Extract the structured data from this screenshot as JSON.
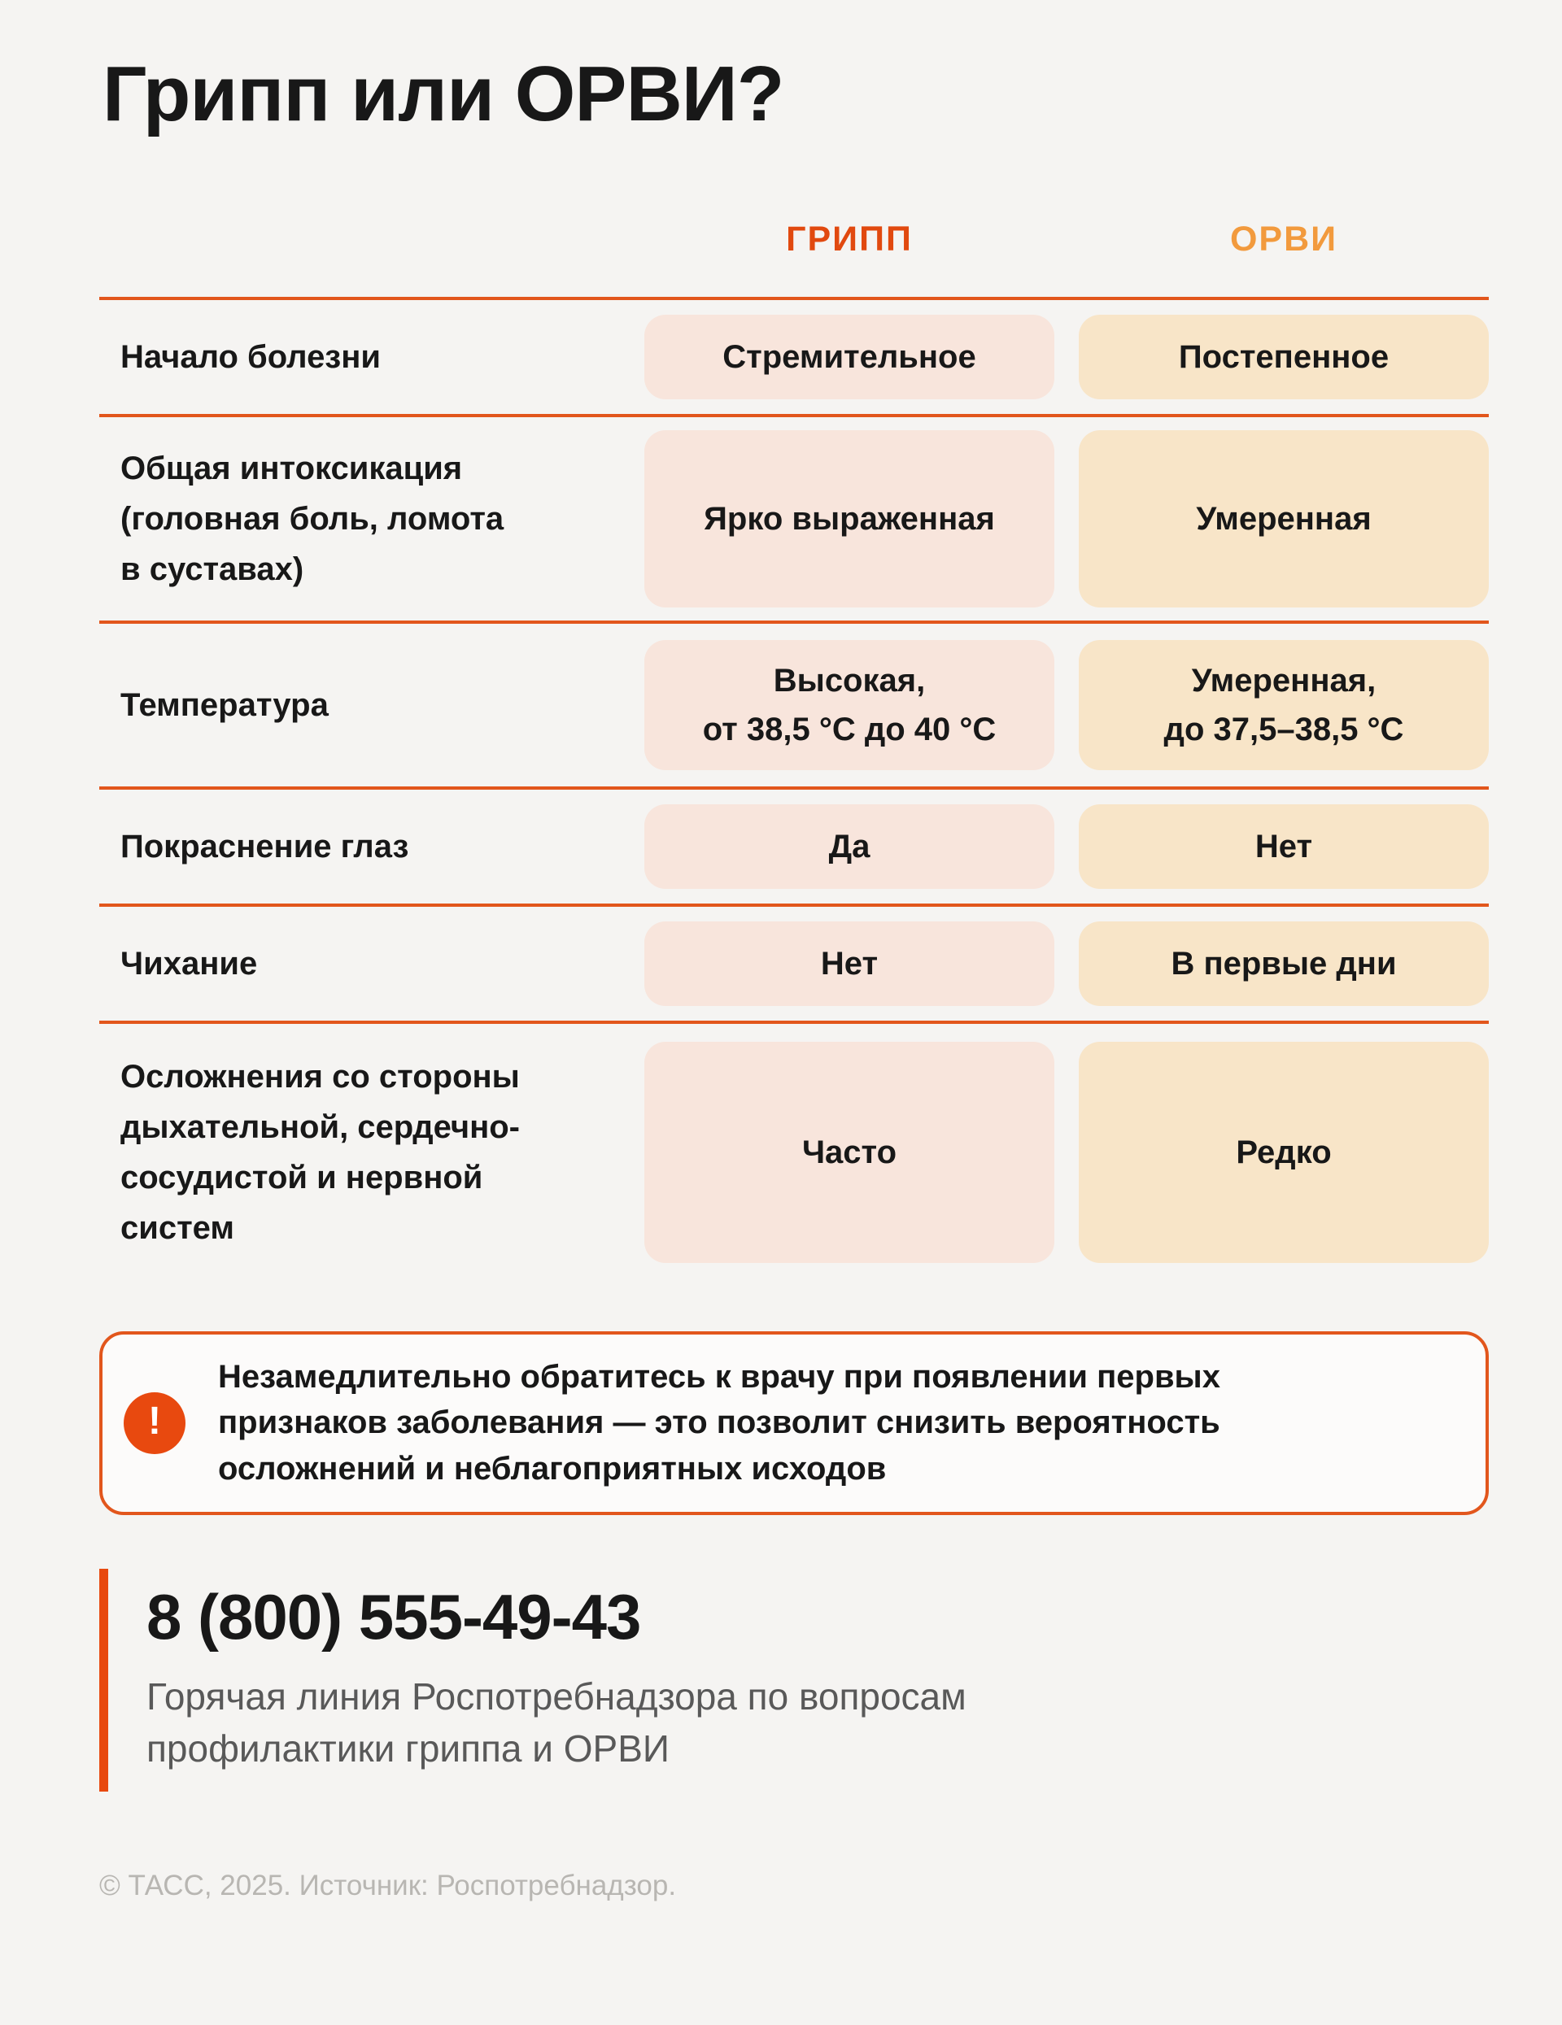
{
  "title": "Грипп или ОРВИ?",
  "table": {
    "columns": [
      {
        "label": "ГРИПП",
        "color": "#e1490f"
      },
      {
        "label": "ОРВИ",
        "color": "#f29a3d"
      }
    ],
    "rows": [
      {
        "label": "Начало болезни",
        "gripp": "Стремительное",
        "orvi": "Постепенное"
      },
      {
        "label": "Общая интоксикация\n(головная боль, ломота\nв суставах)",
        "gripp": "Ярко выраженная",
        "orvi": "Умеренная"
      },
      {
        "label": "Температура",
        "gripp": "Высокая,\nот 38,5 °C до 40 °C",
        "orvi": "Умеренная,\nдо 37,5–38,5 °C"
      },
      {
        "label": "Покраснение глаз",
        "gripp": "Да",
        "orvi": "Нет"
      },
      {
        "label": "Чихание",
        "gripp": "Нет",
        "orvi": "В первые дни"
      },
      {
        "label": "Осложнения со стороны\nдыхательной, сердечно-\nсосудистой и нервной\nсистем",
        "gripp": "Часто",
        "orvi": "Редко"
      }
    ]
  },
  "warning": {
    "icon": "!",
    "text": "Незамедлительно обратитесь к врачу при появлении первых\nпризнаков заболевания — это позволит снизить вероятность\nосложнений и неблагоприятных исходов"
  },
  "hotline": {
    "phone": "8 (800) 555-49-43",
    "description": "Горячая линия Роспотребнадзора по вопросам\nпрофилактики гриппа и ОРВИ"
  },
  "footer": {
    "text": "© ТАСС, 2025. Источник: Роспотребнадзор."
  },
  "colors": {
    "accent": "#e2561c",
    "gripp-header": "#e1490f",
    "orvi-header": "#f29a3d",
    "gripp-cell-bg": "#f8e5dc",
    "orvi-cell-bg": "#f8e5c8",
    "icon-bg": "#e8490f",
    "page-bg": "#f5f4f2",
    "text": "#181818",
    "muted": "#595959",
    "footer": "#b8b6b2"
  }
}
